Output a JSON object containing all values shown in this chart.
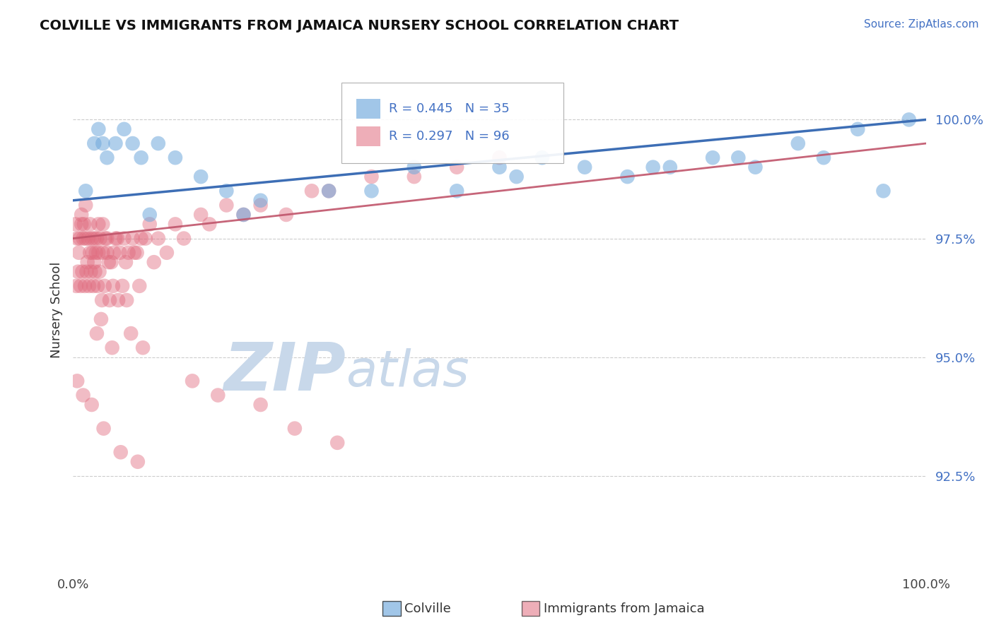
{
  "title": "COLVILLE VS IMMIGRANTS FROM JAMAICA NURSERY SCHOOL CORRELATION CHART",
  "source_text": "Source: ZipAtlas.com",
  "ylabel": "Nursery School",
  "legend_label_blue": "Colville",
  "legend_label_pink": "Immigrants from Jamaica",
  "R_blue": 0.445,
  "N_blue": 35,
  "R_pink": 0.297,
  "N_pink": 96,
  "blue_color": "#6fa8dc",
  "pink_color": "#e06c7f",
  "blue_line_color": "#3d6eb5",
  "pink_line_color": "#c0546a",
  "watermark_zip": "ZIP",
  "watermark_atlas": "atlas",
  "watermark_color": "#c8d8ea",
  "xmin": 0.0,
  "xmax": 100.0,
  "ymin": 90.5,
  "ymax": 101.5,
  "yticks": [
    92.5,
    95.0,
    97.5,
    100.0
  ],
  "blue_line_x0": 0.0,
  "blue_line_y0": 98.3,
  "blue_line_x1": 100.0,
  "blue_line_y1": 100.0,
  "pink_line_x0": 0.0,
  "pink_line_y0": 97.5,
  "pink_line_x1": 100.0,
  "pink_line_y1": 99.5,
  "blue_scatter_x": [
    1.5,
    2.5,
    3.0,
    3.5,
    4.0,
    5.0,
    6.0,
    7.0,
    8.0,
    9.0,
    10.0,
    12.0,
    15.0,
    18.0,
    22.0,
    30.0,
    35.0,
    40.0,
    50.0,
    55.0,
    60.0,
    65.0,
    70.0,
    75.0,
    80.0,
    85.0,
    88.0,
    92.0,
    95.0,
    98.0,
    20.0,
    45.0,
    52.0,
    68.0,
    78.0
  ],
  "blue_scatter_y": [
    98.5,
    99.5,
    99.8,
    99.5,
    99.2,
    99.5,
    99.8,
    99.5,
    99.2,
    98.0,
    99.5,
    99.2,
    98.8,
    98.5,
    98.3,
    98.5,
    98.5,
    99.0,
    99.0,
    99.2,
    99.0,
    98.8,
    99.0,
    99.2,
    99.0,
    99.5,
    99.2,
    99.8,
    98.5,
    100.0,
    98.0,
    98.5,
    98.8,
    99.0,
    99.2
  ],
  "pink_scatter_x": [
    0.3,
    0.5,
    0.7,
    0.8,
    1.0,
    1.0,
    1.2,
    1.3,
    1.5,
    1.5,
    1.7,
    1.8,
    2.0,
    2.0,
    2.2,
    2.3,
    2.5,
    2.5,
    2.7,
    2.8,
    3.0,
    3.0,
    3.2,
    3.5,
    3.5,
    3.8,
    4.0,
    4.0,
    4.5,
    5.0,
    5.5,
    6.0,
    6.5,
    7.0,
    7.5,
    8.0,
    9.0,
    10.0,
    12.0,
    15.0,
    18.0,
    20.0,
    22.0,
    25.0,
    28.0,
    30.0,
    35.0,
    40.0,
    45.0,
    50.0,
    4.2,
    4.8,
    5.2,
    6.2,
    7.2,
    8.5,
    9.5,
    11.0,
    13.0,
    16.0,
    0.4,
    0.6,
    0.9,
    1.1,
    1.4,
    1.6,
    1.9,
    2.1,
    2.4,
    2.6,
    2.9,
    3.1,
    3.4,
    3.7,
    4.3,
    4.7,
    5.3,
    5.8,
    6.3,
    7.8,
    3.3,
    2.8,
    4.6,
    6.8,
    8.2,
    0.5,
    1.2,
    2.2,
    3.6,
    5.6,
    7.6,
    14.0,
    17.0,
    22.0,
    26.0,
    31.0
  ],
  "pink_scatter_y": [
    97.8,
    97.5,
    97.2,
    97.5,
    97.8,
    98.0,
    97.5,
    97.8,
    97.5,
    98.2,
    97.0,
    97.5,
    97.2,
    97.8,
    97.5,
    97.2,
    97.0,
    97.5,
    97.2,
    97.5,
    97.2,
    97.8,
    97.5,
    97.2,
    97.8,
    97.5,
    97.2,
    97.5,
    97.0,
    97.5,
    97.2,
    97.5,
    97.2,
    97.5,
    97.2,
    97.5,
    97.8,
    97.5,
    97.8,
    98.0,
    98.2,
    98.0,
    98.2,
    98.0,
    98.5,
    98.5,
    98.8,
    98.8,
    99.0,
    99.2,
    97.0,
    97.2,
    97.5,
    97.0,
    97.2,
    97.5,
    97.0,
    97.2,
    97.5,
    97.8,
    96.5,
    96.8,
    96.5,
    96.8,
    96.5,
    96.8,
    96.5,
    96.8,
    96.5,
    96.8,
    96.5,
    96.8,
    96.2,
    96.5,
    96.2,
    96.5,
    96.2,
    96.5,
    96.2,
    96.5,
    95.8,
    95.5,
    95.2,
    95.5,
    95.2,
    94.5,
    94.2,
    94.0,
    93.5,
    93.0,
    92.8,
    94.5,
    94.2,
    94.0,
    93.5,
    93.2
  ]
}
